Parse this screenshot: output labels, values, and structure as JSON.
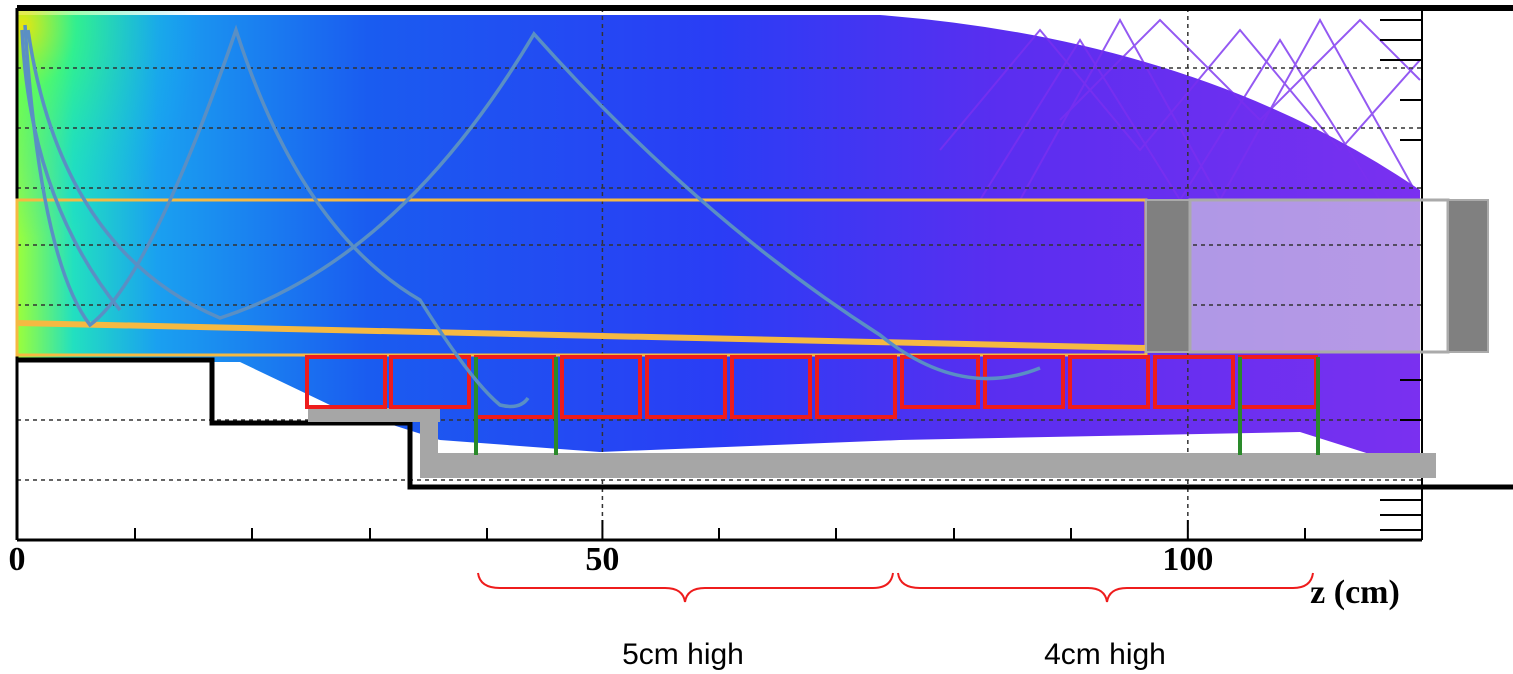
{
  "chart_data": {
    "type": "heatmap",
    "xlabel": "z (cm)",
    "xlim": [
      0,
      120
    ],
    "xticks": [
      0,
      50,
      100
    ],
    "grid": true,
    "annotations": [
      "5cm high",
      "4cm high"
    ]
  }
}
